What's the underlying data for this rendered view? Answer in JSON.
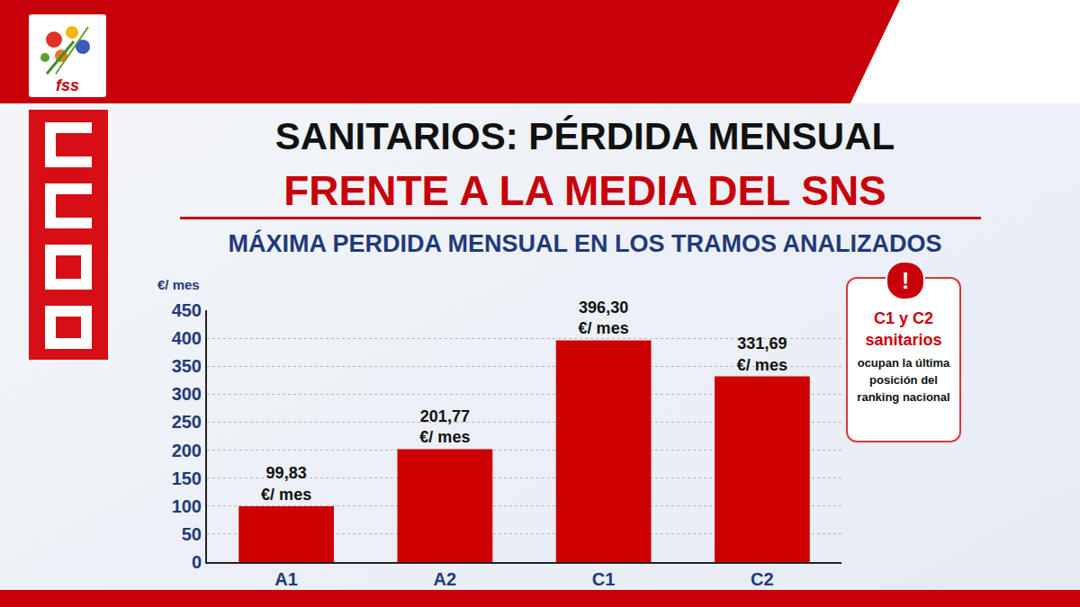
{
  "header": {
    "logo": "fss",
    "title": "SANITARIOS: PÉRDIDA MENSUAL",
    "subtitle": "FRENTE A LA MEDIA DEL SNS",
    "caption": "MÁXIMA PERDIDA MENSUAL EN LOS TRAMOS ANALIZADOS"
  },
  "chart_data": {
    "type": "bar",
    "y_label": "€/ mes",
    "categories": [
      "A1",
      "A2",
      "C1",
      "C2"
    ],
    "values": [
      99.83,
      201.77,
      396.3,
      331.69
    ],
    "value_labels": [
      "99,83 €/ mes",
      "201,77 €/ mes",
      "396,30 €/ mes",
      "331,69 €/ mes"
    ],
    "color": "#cc0000",
    "ylim": [
      0,
      450
    ],
    "yticks": [
      0,
      50,
      100,
      150,
      200,
      250,
      300,
      350,
      400,
      450
    ],
    "grid": true,
    "data_labels": true
  },
  "callout": {
    "icon": "!",
    "highlight": "C1 y C2 sanitarios",
    "text": "ocupan la última posición del ranking nacional"
  }
}
